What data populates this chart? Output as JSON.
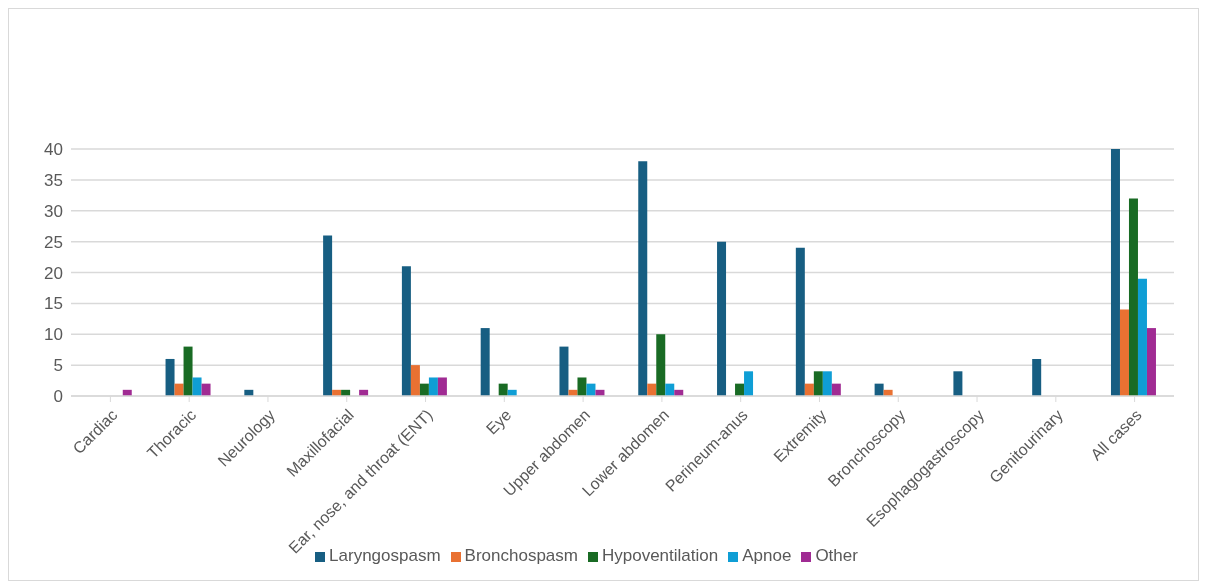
{
  "chart_data": {
    "type": "bar",
    "categories": [
      "Cardiac",
      "Thoracic",
      "Neurology",
      "Maxillofacial",
      "Ear, nose, and throat (ENT)",
      "Eye",
      "Upper abdomen",
      "Lower abdomen",
      "Perineum-anus",
      "Extremity",
      "Bronchoscopy",
      "Esophagogastroscopy",
      "Genitourinary",
      "All cases"
    ],
    "series": [
      {
        "name": "Laryngospasm",
        "color": "#175e82",
        "values": [
          0,
          6,
          1,
          26,
          21,
          11,
          8,
          38,
          25,
          24,
          2,
          4,
          6,
          40
        ]
      },
      {
        "name": "Bronchospasm",
        "color": "#e97132",
        "values": [
          0,
          2,
          0,
          1,
          5,
          0,
          1,
          2,
          0,
          2,
          1,
          0,
          0,
          14
        ]
      },
      {
        "name": "Hypoventilation",
        "color": "#196b24",
        "values": [
          0,
          8,
          0,
          1,
          2,
          2,
          3,
          10,
          2,
          4,
          0,
          0,
          0,
          32
        ]
      },
      {
        "name": "Apnoe",
        "color": "#0f9ed5",
        "values": [
          0,
          3,
          0,
          0,
          3,
          1,
          2,
          2,
          4,
          4,
          0,
          0,
          0,
          19
        ]
      },
      {
        "name": "Other",
        "color": "#a02b93",
        "values": [
          1,
          2,
          0,
          1,
          3,
          0,
          1,
          1,
          0,
          2,
          0,
          0,
          0,
          11
        ]
      }
    ],
    "ylim": [
      0,
      40
    ],
    "yticks": [
      0,
      5,
      10,
      15,
      20,
      25,
      30,
      35,
      40
    ],
    "grid": "y",
    "legend": "bottom"
  }
}
